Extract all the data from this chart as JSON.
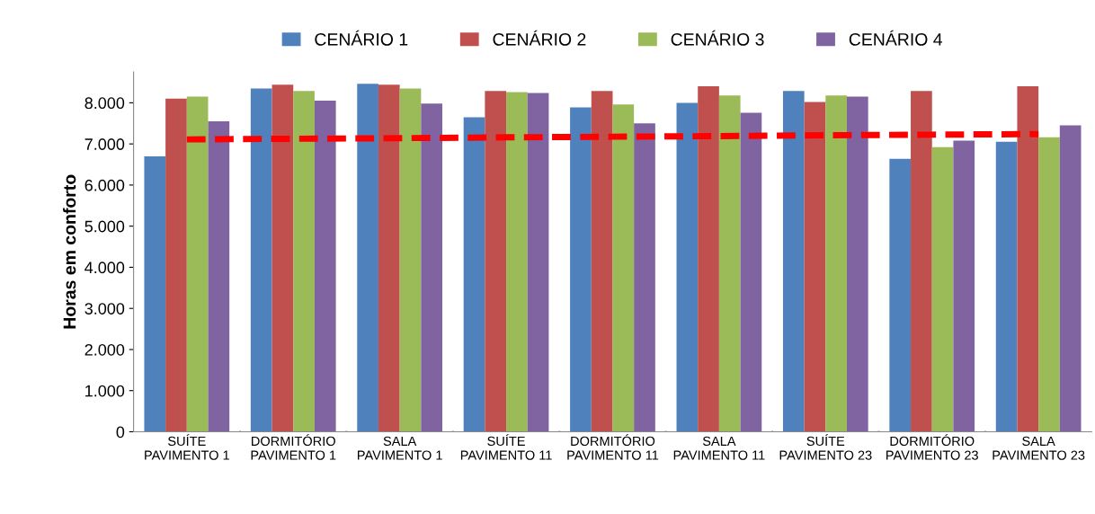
{
  "chart_data": {
    "type": "bar",
    "ylabel": "Horas em conforto",
    "categories": [
      "SUÍTE\nPAVIMENTO 1",
      "DORMITÓRIO\nPAVIMENTO 1",
      "SALA\nPAVIMENTO 1",
      "SUÍTE\nPAVIMENTO 11",
      "DORMITÓRIO\nPAVIMENTO 11",
      "SALA\nPAVIMENTO 11",
      "SUÍTE\nPAVIMENTO 23",
      "DORMITÓRIO\nPAVIMENTO 23",
      "SALA\nPAVIMENTO 23"
    ],
    "series": [
      {
        "name": "CENÁRIO 1",
        "color": "#4f81bd",
        "values": [
          6700,
          8350,
          8460,
          7650,
          7890,
          8000,
          8290,
          6640,
          7050
        ]
      },
      {
        "name": "CENÁRIO 2",
        "color": "#c0504d",
        "values": [
          8100,
          8440,
          8440,
          8290,
          8290,
          8400,
          8020,
          8290,
          8400
        ]
      },
      {
        "name": "CENÁRIO 3",
        "color": "#9bbb59",
        "values": [
          8150,
          8290,
          8350,
          8260,
          7960,
          8180,
          8180,
          6920,
          7160
        ]
      },
      {
        "name": "CENÁRIO 4",
        "color": "#8064a2",
        "values": [
          7550,
          8050,
          7980,
          8240,
          7500,
          7760,
          8150,
          7080,
          7450
        ]
      },
      {
        "type": "line",
        "color": "#ff0000",
        "line_style": "dashed",
        "values": [
          7110,
          7125,
          7140,
          7160,
          7175,
          7190,
          7210,
          7225,
          7240
        ]
      }
    ],
    "ylim": [
      0,
      8750
    ],
    "yticks": [
      0,
      {
        "value": 1000,
        "label": "1.000"
      },
      {
        "value": 2000,
        "label": "2.000"
      },
      {
        "value": 3000,
        "label": "3.000"
      },
      {
        "value": 4000,
        "label": "4.000"
      },
      {
        "value": 5000,
        "label": "5.000"
      },
      {
        "value": 6000,
        "label": "6.000"
      },
      {
        "value": 7000,
        "label": "7.000"
      },
      {
        "value": 8000,
        "label": "8.000"
      }
    ],
    "legend": "top",
    "grid": false
  }
}
